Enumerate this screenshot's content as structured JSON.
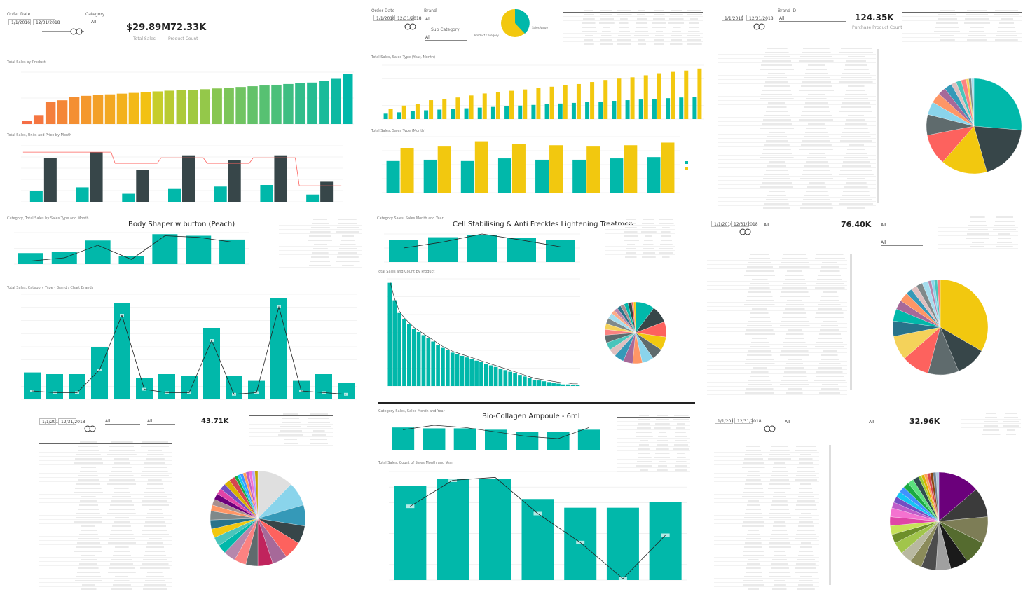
{
  "kpis": {
    "total_sales_1": "$29.89M",
    "units_1": "72.33K",
    "units_2": "124.35K",
    "units_3": "76.40K",
    "units_4": "43.71K",
    "units_5": "32.96K"
  },
  "slicers": {
    "dropdown_all": "All"
  },
  "visual_titles": {
    "body_shaper": "Body Shaper w button (Peach)",
    "cell_stabilising": "Cell Stabilising & Anti Freckles Lightening Treatmen",
    "bio_collagen": "Bio-Collagen Ampoule - 6ml"
  },
  "colors": {
    "teal": "#01B8AA",
    "dark": "#374649",
    "yellow": "#F2C80F",
    "red": "#FD625E",
    "orange": "#F5A04A"
  },
  "charts": [
    {
      "type": "bar",
      "id": "gradient-bars",
      "values": [
        4,
        12,
        30,
        32,
        36,
        38,
        39,
        40,
        41,
        42,
        43,
        44,
        45,
        46,
        46,
        47,
        48,
        49,
        50,
        51,
        52,
        53,
        54,
        55,
        56,
        58,
        61,
        68
      ]
    },
    {
      "type": "bar",
      "id": "month-combo",
      "values_a": [
        14,
        18,
        10,
        16,
        19,
        21,
        9
      ],
      "values_b": [
        55,
        62,
        40,
        58,
        52,
        58,
        25
      ],
      "line": [
        62,
        62,
        48,
        55,
        48,
        55,
        20
      ]
    },
    {
      "type": "bar",
      "id": "yearly-clustered",
      "values_a": [
        8,
        10,
        12,
        13,
        14,
        15,
        16,
        17,
        18,
        19,
        20,
        21,
        22,
        23,
        24,
        25,
        26,
        27,
        28,
        29,
        30,
        31,
        32,
        33
      ],
      "values_b": [
        15,
        20,
        22,
        28,
        30,
        32,
        35,
        38,
        40,
        42,
        44,
        46,
        48,
        50,
        52,
        55,
        58,
        60,
        62,
        65,
        68,
        70,
        72,
        75
      ]
    },
    {
      "type": "bar",
      "id": "monthly-clustered",
      "values_a": [
        48,
        50,
        48,
        52,
        50,
        50,
        52,
        54
      ],
      "values_b": [
        68,
        70,
        78,
        74,
        72,
        70,
        72,
        76
      ]
    },
    {
      "type": "bar",
      "id": "body-shaper",
      "values": [
        35,
        40,
        75,
        25,
        95,
        90,
        78
      ],
      "line": [
        10,
        20,
        60,
        15,
        90,
        85,
        70
      ]
    },
    {
      "type": "bar",
      "id": "category-combo",
      "values": [
        32,
        30,
        30,
        62,
        115,
        25,
        30,
        28,
        85,
        28,
        22,
        120,
        22,
        30,
        20
      ],
      "line": [
        10,
        8,
        8,
        35,
        100,
        12,
        8,
        8,
        70,
        6,
        8,
        110,
        10,
        8,
        6
      ]
    },
    {
      "type": "bar",
      "id": "cell-stab-top",
      "values": [
        55,
        62,
        68,
        60,
        55
      ],
      "line": [
        35,
        50,
        70,
        55,
        38
      ]
    },
    {
      "type": "bar",
      "id": "pareto",
      "values": [
        130,
        108,
        92,
        84,
        78,
        72,
        68,
        64,
        60,
        56,
        52,
        48,
        45,
        42,
        40,
        38,
        36,
        34,
        32,
        30,
        28,
        26,
        24,
        22,
        20,
        18,
        16,
        14,
        12,
        10,
        8,
        7,
        6,
        5,
        4,
        3,
        2,
        2,
        1,
        1
      ]
    },
    {
      "type": "bar",
      "id": "bio-top",
      "values": [
        50,
        48,
        48,
        45,
        40,
        40,
        45
      ],
      "line": [
        45,
        55,
        50,
        40,
        30,
        25,
        50
      ]
    },
    {
      "type": "bar",
      "id": "bio-main",
      "values": [
        130,
        140,
        140,
        112,
        100,
        100,
        108
      ],
      "line": [
        100,
        136,
        140,
        90,
        50,
        0,
        60
      ]
    }
  ]
}
